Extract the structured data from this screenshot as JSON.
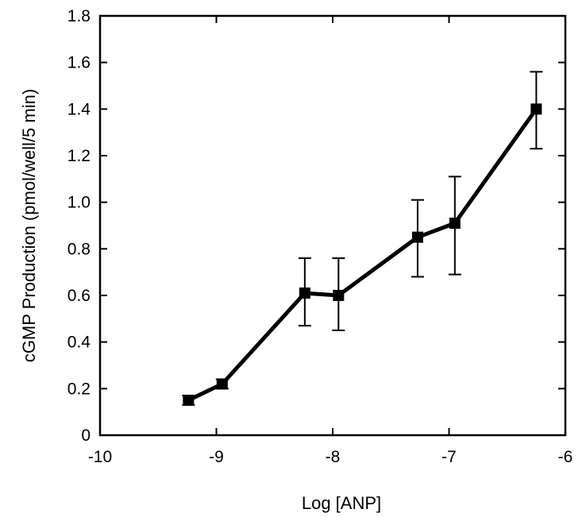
{
  "chart_data": {
    "type": "line",
    "title": "",
    "xlabel": "Log [ANP]",
    "ylabel": "cGMP Production (pmol/well/5  min)",
    "xlim": [
      -10,
      -6
    ],
    "ylim": [
      0,
      1.8
    ],
    "x_ticks": [
      -10,
      -9,
      -8,
      -7,
      -6
    ],
    "x_tick_labels": [
      "-10",
      "-9",
      "-8",
      "-7",
      "-6"
    ],
    "y_ticks": [
      0,
      0.2,
      0.4,
      0.6,
      0.8,
      1.0,
      1.2,
      1.4,
      1.6,
      1.8
    ],
    "y_tick_labels": [
      "0",
      "0.2",
      "0.4",
      "0.6",
      "0.8",
      "1.0",
      "1.2",
      "1.4",
      "1.6",
      "1.8"
    ],
    "grid": false,
    "series": [
      {
        "x": [
          -9.24,
          -8.95,
          -8.24,
          -7.95,
          -7.27,
          -6.95,
          -6.25
        ],
        "y": [
          0.15,
          0.22,
          0.61,
          0.6,
          0.85,
          0.91,
          1.4
        ],
        "y_lower": [
          0.13,
          0.2,
          0.47,
          0.45,
          0.68,
          0.69,
          1.23
        ],
        "y_upper": [
          0.17,
          0.24,
          0.76,
          0.76,
          1.01,
          1.11,
          1.56
        ],
        "color": "#000000",
        "marker": "square"
      }
    ]
  }
}
